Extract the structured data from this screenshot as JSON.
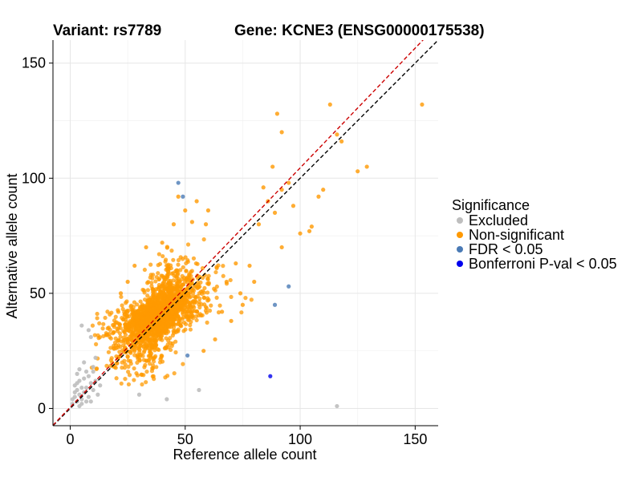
{
  "chart_data": {
    "type": "scatter",
    "title_left": "Variant: rs7789",
    "title_right": "Gene: KCNE3 (ENSG00000175538)",
    "xlabel": "Reference allele count",
    "ylabel": "Alternative allele count",
    "xlim": [
      -7.5,
      160
    ],
    "ylim": [
      -7.5,
      160
    ],
    "x_ticks": [
      0,
      50,
      100,
      150
    ],
    "y_ticks": [
      0,
      50,
      100,
      150
    ],
    "grid": true,
    "legend": {
      "title": "Significance",
      "position": "right",
      "entries": [
        {
          "label": "Excluded",
          "color": "#bebebe"
        },
        {
          "label": "Non-significant",
          "color": "#ff9900"
        },
        {
          "label": "FDR < 0.05",
          "color": "#4a7ab5"
        },
        {
          "label": "Bonferroni P-val < 0.05",
          "color": "#0000ee"
        }
      ]
    },
    "reference_lines": [
      {
        "kind": "identity",
        "style": "dashed",
        "color": "#000000"
      },
      {
        "kind": "fitted",
        "style": "dashed",
        "color": "#cc0000",
        "slope": 1.04,
        "intercept": 0.5
      }
    ],
    "non_significant_cloud": {
      "count": 1800,
      "center": [
        38,
        40
      ],
      "spread_along_diagonal": 12,
      "spread_across_diagonal": 6,
      "color": "#ff9900"
    },
    "series": [
      {
        "name": "Excluded",
        "color": "#bebebe",
        "points": [
          [
            1,
            4
          ],
          [
            2,
            5
          ],
          [
            3,
            3
          ],
          [
            4,
            6
          ],
          [
            5,
            4
          ],
          [
            3,
            8
          ],
          [
            6,
            7
          ],
          [
            2,
            10
          ],
          [
            4,
            12
          ],
          [
            5,
            2
          ],
          [
            7,
            9
          ],
          [
            8,
            5
          ],
          [
            9,
            11
          ],
          [
            6,
            13
          ],
          [
            3,
            15
          ],
          [
            4,
            17
          ],
          [
            8,
            14
          ],
          [
            10,
            8
          ],
          [
            11,
            12
          ],
          [
            9,
            3
          ],
          [
            5,
            9
          ],
          [
            7,
            3
          ],
          [
            12,
            6
          ],
          [
            6,
            20
          ],
          [
            5,
            36
          ],
          [
            8,
            34
          ],
          [
            9,
            31
          ],
          [
            10,
            18
          ],
          [
            11,
            22
          ],
          [
            2,
            7
          ],
          [
            1,
            2
          ],
          [
            4,
            1
          ],
          [
            30,
            6
          ],
          [
            42,
            4
          ],
          [
            56,
            8
          ],
          [
            116,
            1
          ],
          [
            3,
            11
          ],
          [
            7,
            16
          ],
          [
            10,
            16
          ],
          [
            13,
            10
          ]
        ]
      },
      {
        "name": "Non-significant outliers",
        "color": "#ff9900",
        "points": [
          [
            113,
            132
          ],
          [
            153,
            132
          ],
          [
            90,
            128
          ],
          [
            92,
            120
          ],
          [
            116,
            119
          ],
          [
            118,
            116
          ],
          [
            125,
            103
          ],
          [
            129,
            105
          ],
          [
            88,
            105
          ],
          [
            84,
            96
          ],
          [
            92,
            95
          ],
          [
            95,
            98
          ],
          [
            105,
            79
          ],
          [
            104,
            77
          ],
          [
            100,
            76
          ],
          [
            82,
            80
          ],
          [
            92,
            70
          ],
          [
            89,
            85
          ],
          [
            86,
            90
          ],
          [
            108,
            92
          ],
          [
            110,
            95
          ],
          [
            97,
            88
          ],
          [
            78,
            62
          ],
          [
            72,
            63
          ],
          [
            68,
            55
          ],
          [
            80,
            55
          ],
          [
            47,
            92
          ],
          [
            55,
            90
          ],
          [
            60,
            86
          ],
          [
            53,
            81
          ],
          [
            40,
            72
          ],
          [
            33,
            70
          ],
          [
            28,
            62
          ],
          [
            25,
            55
          ],
          [
            22,
            50
          ],
          [
            70,
            38
          ],
          [
            63,
            30
          ],
          [
            58,
            25
          ],
          [
            75,
            45
          ],
          [
            74,
            50
          ],
          [
            66,
            42
          ],
          [
            59,
            80
          ],
          [
            45,
            80
          ],
          [
            50,
            86
          ]
        ]
      },
      {
        "name": "FDR < 0.05",
        "color": "#4a7ab5",
        "points": [
          [
            47,
            98
          ],
          [
            49,
            92
          ],
          [
            95,
            53
          ],
          [
            89,
            45
          ],
          [
            51,
            23
          ]
        ]
      },
      {
        "name": "Bonferroni P-val < 0.05",
        "color": "#0000ee",
        "points": [
          [
            87,
            14
          ]
        ]
      }
    ]
  }
}
